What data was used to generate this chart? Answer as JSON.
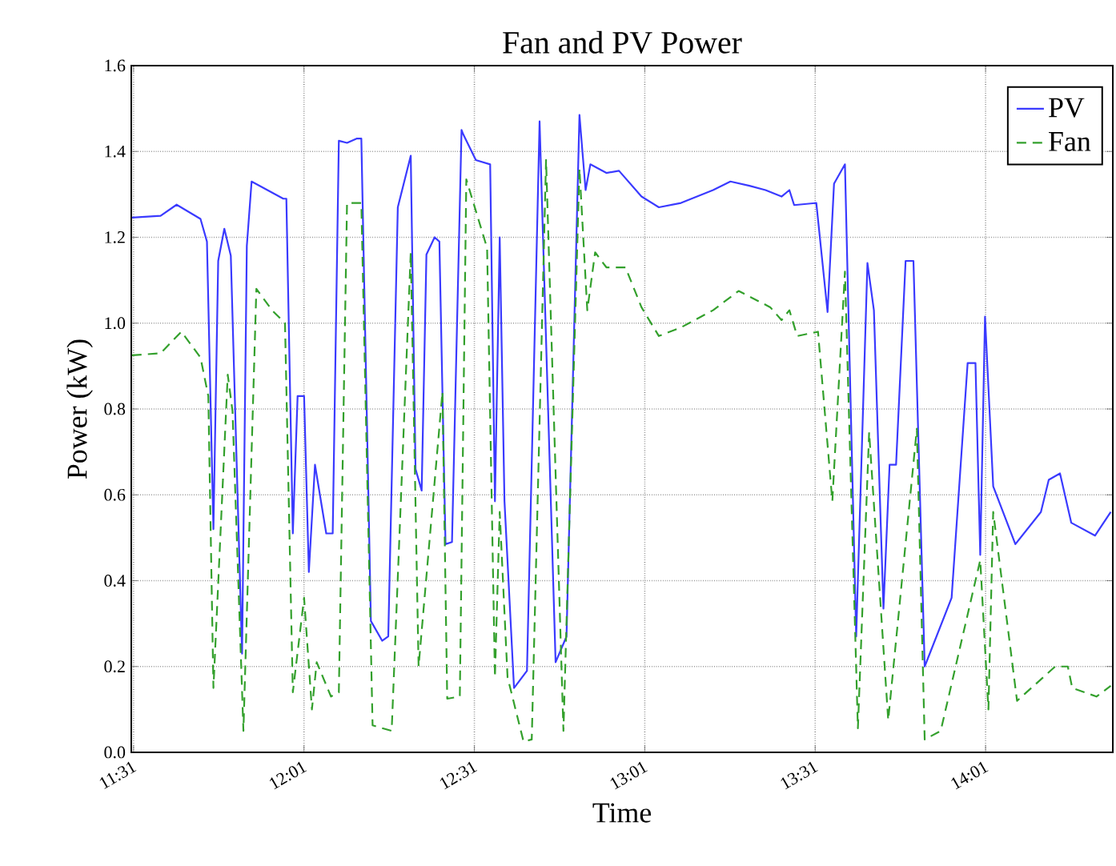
{
  "chart_data": {
    "type": "line",
    "title": "Fan and PV Power",
    "xlabel": "Time",
    "ylabel": "Power (kW)",
    "xlim": [
      11.51,
      14.39
    ],
    "xticks": [
      {
        "value": 11.5167,
        "label": "11:31"
      },
      {
        "value": 12.0167,
        "label": "12:01"
      },
      {
        "value": 12.5167,
        "label": "12:31"
      },
      {
        "value": 13.0167,
        "label": "13:01"
      },
      {
        "value": 13.5167,
        "label": "13:31"
      },
      {
        "value": 14.0167,
        "label": "14:01"
      }
    ],
    "ylim": [
      0,
      1.6
    ],
    "yticks": [
      {
        "value": 0,
        "label": "0.0"
      },
      {
        "value": 0.2,
        "label": "0.2"
      },
      {
        "value": 0.4,
        "label": "0.4"
      },
      {
        "value": 0.6,
        "label": "0.6"
      },
      {
        "value": 0.8,
        "label": "0.8"
      },
      {
        "value": 1.0,
        "label": "1.0"
      },
      {
        "value": 1.2,
        "label": "1.2"
      },
      {
        "value": 1.4,
        "label": "1.4"
      },
      {
        "value": 1.6,
        "label": "1.6"
      }
    ],
    "grid": true,
    "legend": "top right",
    "series": [
      {
        "name": "PV",
        "color": "#3a3aff",
        "line_style": "solid",
        "x": [
          11.512,
          11.596,
          11.643,
          11.713,
          11.732,
          11.751,
          11.765,
          11.783,
          11.802,
          11.835,
          11.849,
          11.863,
          11.956,
          11.965,
          11.984,
          11.998,
          12.017,
          12.031,
          12.049,
          12.082,
          12.101,
          12.119,
          12.143,
          12.171,
          12.185,
          12.213,
          12.246,
          12.264,
          12.292,
          12.33,
          12.344,
          12.362,
          12.376,
          12.4,
          12.414,
          12.432,
          12.451,
          12.479,
          12.484,
          12.521,
          12.563,
          12.577,
          12.591,
          12.605,
          12.633,
          12.671,
          12.708,
          12.755,
          12.787,
          12.825,
          12.843,
          12.857,
          12.904,
          12.941,
          13.007,
          13.058,
          13.123,
          13.217,
          13.268,
          13.324,
          13.371,
          13.418,
          13.441,
          13.455,
          13.52,
          13.553,
          13.572,
          13.604,
          13.637,
          13.67,
          13.689,
          13.717,
          13.735,
          13.754,
          13.782,
          13.805,
          13.838,
          13.917,
          13.964,
          13.987,
          14.001,
          14.015,
          14.039,
          14.104,
          14.179,
          14.202,
          14.235,
          14.268,
          14.338,
          14.384
        ],
        "values": [
          1.246,
          1.25,
          1.276,
          1.243,
          1.19,
          0.52,
          1.145,
          1.22,
          1.157,
          0.23,
          1.18,
          1.33,
          1.29,
          1.29,
          0.51,
          0.83,
          0.83,
          0.42,
          0.67,
          0.51,
          0.51,
          1.425,
          1.42,
          1.43,
          1.43,
          0.306,
          0.26,
          0.27,
          1.27,
          1.39,
          0.66,
          0.61,
          1.16,
          1.2,
          1.19,
          0.485,
          0.49,
          1.45,
          1.44,
          1.38,
          1.37,
          0.585,
          1.2,
          0.585,
          0.15,
          0.19,
          1.47,
          0.21,
          0.27,
          1.485,
          1.31,
          1.37,
          1.35,
          1.355,
          1.295,
          1.27,
          1.28,
          1.31,
          1.33,
          1.32,
          1.31,
          1.295,
          1.31,
          1.275,
          1.28,
          1.026,
          1.325,
          1.37,
          0.27,
          1.14,
          1.03,
          0.335,
          0.67,
          0.67,
          1.145,
          1.145,
          0.2,
          0.36,
          0.907,
          0.907,
          0.46,
          1.015,
          0.62,
          0.485,
          0.56,
          0.635,
          0.65,
          0.535,
          0.505,
          0.56
        ]
      },
      {
        "name": "Fan",
        "color": "#33a02c",
        "line_style": "dashed",
        "x": [
          11.512,
          11.596,
          11.657,
          11.713,
          11.736,
          11.751,
          11.793,
          11.807,
          11.839,
          11.877,
          11.923,
          11.961,
          11.984,
          12.017,
          12.04,
          12.054,
          12.096,
          12.119,
          12.143,
          12.185,
          12.218,
          12.274,
          12.33,
          12.353,
          12.423,
          12.437,
          12.474,
          12.493,
          12.554,
          12.577,
          12.591,
          12.614,
          12.661,
          12.685,
          12.727,
          12.778,
          12.825,
          12.848,
          12.871,
          12.904,
          12.96,
          13.007,
          13.058,
          13.123,
          13.217,
          13.292,
          13.385,
          13.418,
          13.441,
          13.464,
          13.525,
          13.567,
          13.604,
          13.642,
          13.675,
          13.731,
          13.815,
          13.838,
          13.885,
          14.001,
          14.025,
          14.039,
          14.109,
          14.221,
          14.258,
          14.271,
          14.342,
          14.384
        ],
        "values": [
          0.925,
          0.93,
          0.98,
          0.92,
          0.83,
          0.15,
          0.88,
          0.795,
          0.05,
          1.08,
          1.03,
          1.0,
          0.14,
          0.36,
          0.1,
          0.21,
          0.13,
          0.14,
          1.28,
          1.28,
          0.063,
          0.05,
          1.165,
          0.2,
          0.84,
          0.125,
          0.13,
          1.335,
          1.175,
          0.175,
          0.56,
          0.175,
          0.025,
          0.03,
          1.38,
          0.05,
          1.36,
          1.03,
          1.165,
          1.13,
          1.13,
          1.037,
          0.97,
          0.99,
          1.03,
          1.075,
          1.037,
          1.007,
          1.03,
          0.97,
          0.98,
          0.585,
          1.12,
          0.056,
          0.746,
          0.075,
          0.754,
          0.03,
          0.05,
          0.448,
          0.1,
          0.56,
          0.12,
          0.2,
          0.2,
          0.15,
          0.13,
          0.155
        ]
      }
    ]
  }
}
